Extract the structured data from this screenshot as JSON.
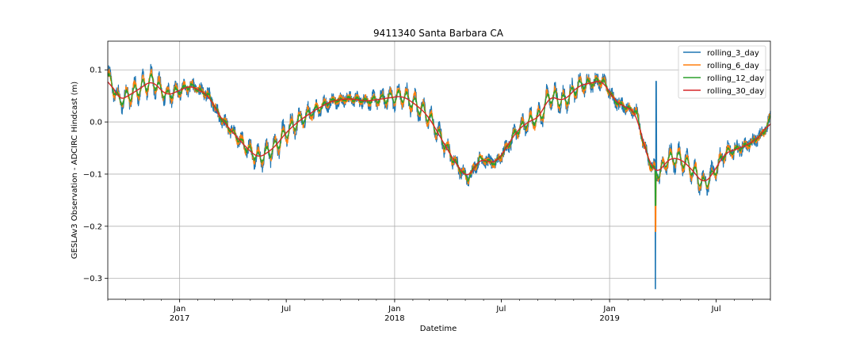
{
  "chart_data": {
    "type": "line",
    "title": "9411340 Santa Barbara CA",
    "xlabel": "Datetime",
    "ylabel": "GESLAv3 Observation - ADCIRC Hindcast (m)",
    "x_range": [
      "2016-09-01",
      "2019-10-01"
    ],
    "ylim": [
      -0.34,
      0.155
    ],
    "grid": true,
    "legend_position": "top-right",
    "y_ticks": [
      {
        "value": 0.1,
        "label": "0.1"
      },
      {
        "value": 0.0,
        "label": "0.0"
      },
      {
        "value": -0.1,
        "label": "−0.1"
      },
      {
        "value": -0.2,
        "label": "−0.2"
      },
      {
        "value": -0.3,
        "label": "−0.3"
      }
    ],
    "x_ticks": [
      {
        "date": "2017-01-01",
        "label": "Jan",
        "sub": "2017",
        "grid": true
      },
      {
        "date": "2017-07-01",
        "label": "Jul",
        "sub": "",
        "grid": false
      },
      {
        "date": "2018-01-01",
        "label": "Jan",
        "sub": "2018",
        "grid": true
      },
      {
        "date": "2018-07-01",
        "label": "Jul",
        "sub": "",
        "grid": false
      },
      {
        "date": "2019-01-01",
        "label": "Jan",
        "sub": "2019",
        "grid": true
      },
      {
        "date": "2019-07-01",
        "label": "Jul",
        "sub": "",
        "grid": false
      }
    ],
    "series": [
      {
        "name": "rolling_3_day",
        "color": "#1f77b4",
        "noise": 0.012,
        "wiggle": 0.022
      },
      {
        "name": "rolling_6_day",
        "color": "#ff7f0e",
        "noise": 0.007,
        "wiggle": 0.018
      },
      {
        "name": "rolling_12_day",
        "color": "#2ca02c",
        "noise": 0.003,
        "wiggle": 0.012
      },
      {
        "name": "rolling_30_day",
        "color": "#d62728",
        "noise": 0.0,
        "wiggle": 0.0
      }
    ],
    "trend_points": [
      [
        "2016-09-01",
        0.09
      ],
      [
        "2016-09-20",
        0.04
      ],
      [
        "2016-10-20",
        0.06
      ],
      [
        "2016-11-15",
        0.08
      ],
      [
        "2016-12-10",
        0.05
      ],
      [
        "2017-01-20",
        0.07
      ],
      [
        "2017-02-20",
        0.05
      ],
      [
        "2017-03-10",
        0.01
      ],
      [
        "2017-04-01",
        -0.02
      ],
      [
        "2017-04-25",
        -0.05
      ],
      [
        "2017-05-15",
        -0.07
      ],
      [
        "2017-06-10",
        -0.05
      ],
      [
        "2017-07-01",
        -0.02
      ],
      [
        "2017-07-20",
        0.0
      ],
      [
        "2017-08-15",
        0.02
      ],
      [
        "2017-09-15",
        0.04
      ],
      [
        "2017-10-15",
        0.045
      ],
      [
        "2017-11-15",
        0.04
      ],
      [
        "2017-12-15",
        0.045
      ],
      [
        "2018-01-15",
        0.05
      ],
      [
        "2018-02-10",
        0.03
      ],
      [
        "2018-02-28",
        0.01
      ],
      [
        "2018-03-20",
        -0.03
      ],
      [
        "2018-04-15",
        -0.08
      ],
      [
        "2018-05-05",
        -0.11
      ],
      [
        "2018-05-25",
        -0.07
      ],
      [
        "2018-06-20",
        -0.08
      ],
      [
        "2018-07-10",
        -0.05
      ],
      [
        "2018-07-25",
        -0.02
      ],
      [
        "2018-08-15",
        0.0
      ],
      [
        "2018-09-05",
        0.01
      ],
      [
        "2018-09-20",
        0.05
      ],
      [
        "2018-10-15",
        0.04
      ],
      [
        "2018-11-10",
        0.07
      ],
      [
        "2018-12-01",
        0.075
      ],
      [
        "2018-12-20",
        0.08
      ],
      [
        "2019-01-10",
        0.04
      ],
      [
        "2019-01-25",
        0.03
      ],
      [
        "2019-02-15",
        0.02
      ],
      [
        "2019-03-01",
        -0.05
      ],
      [
        "2019-03-15",
        -0.09
      ],
      [
        "2019-03-25",
        -0.1
      ],
      [
        "2019-04-10",
        -0.07
      ],
      [
        "2019-05-01",
        -0.07
      ],
      [
        "2019-05-20",
        -0.09
      ],
      [
        "2019-06-10",
        -0.12
      ],
      [
        "2019-06-25",
        -0.1
      ],
      [
        "2019-07-15",
        -0.06
      ],
      [
        "2019-08-10",
        -0.05
      ],
      [
        "2019-08-30",
        -0.04
      ],
      [
        "2019-09-20",
        -0.02
      ],
      [
        "2019-10-01",
        0.01
      ]
    ],
    "spike": {
      "date": "2019-03-20",
      "values": [
        -0.32,
        -0.21,
        -0.16,
        -0.1
      ],
      "high": 0.078
    }
  }
}
